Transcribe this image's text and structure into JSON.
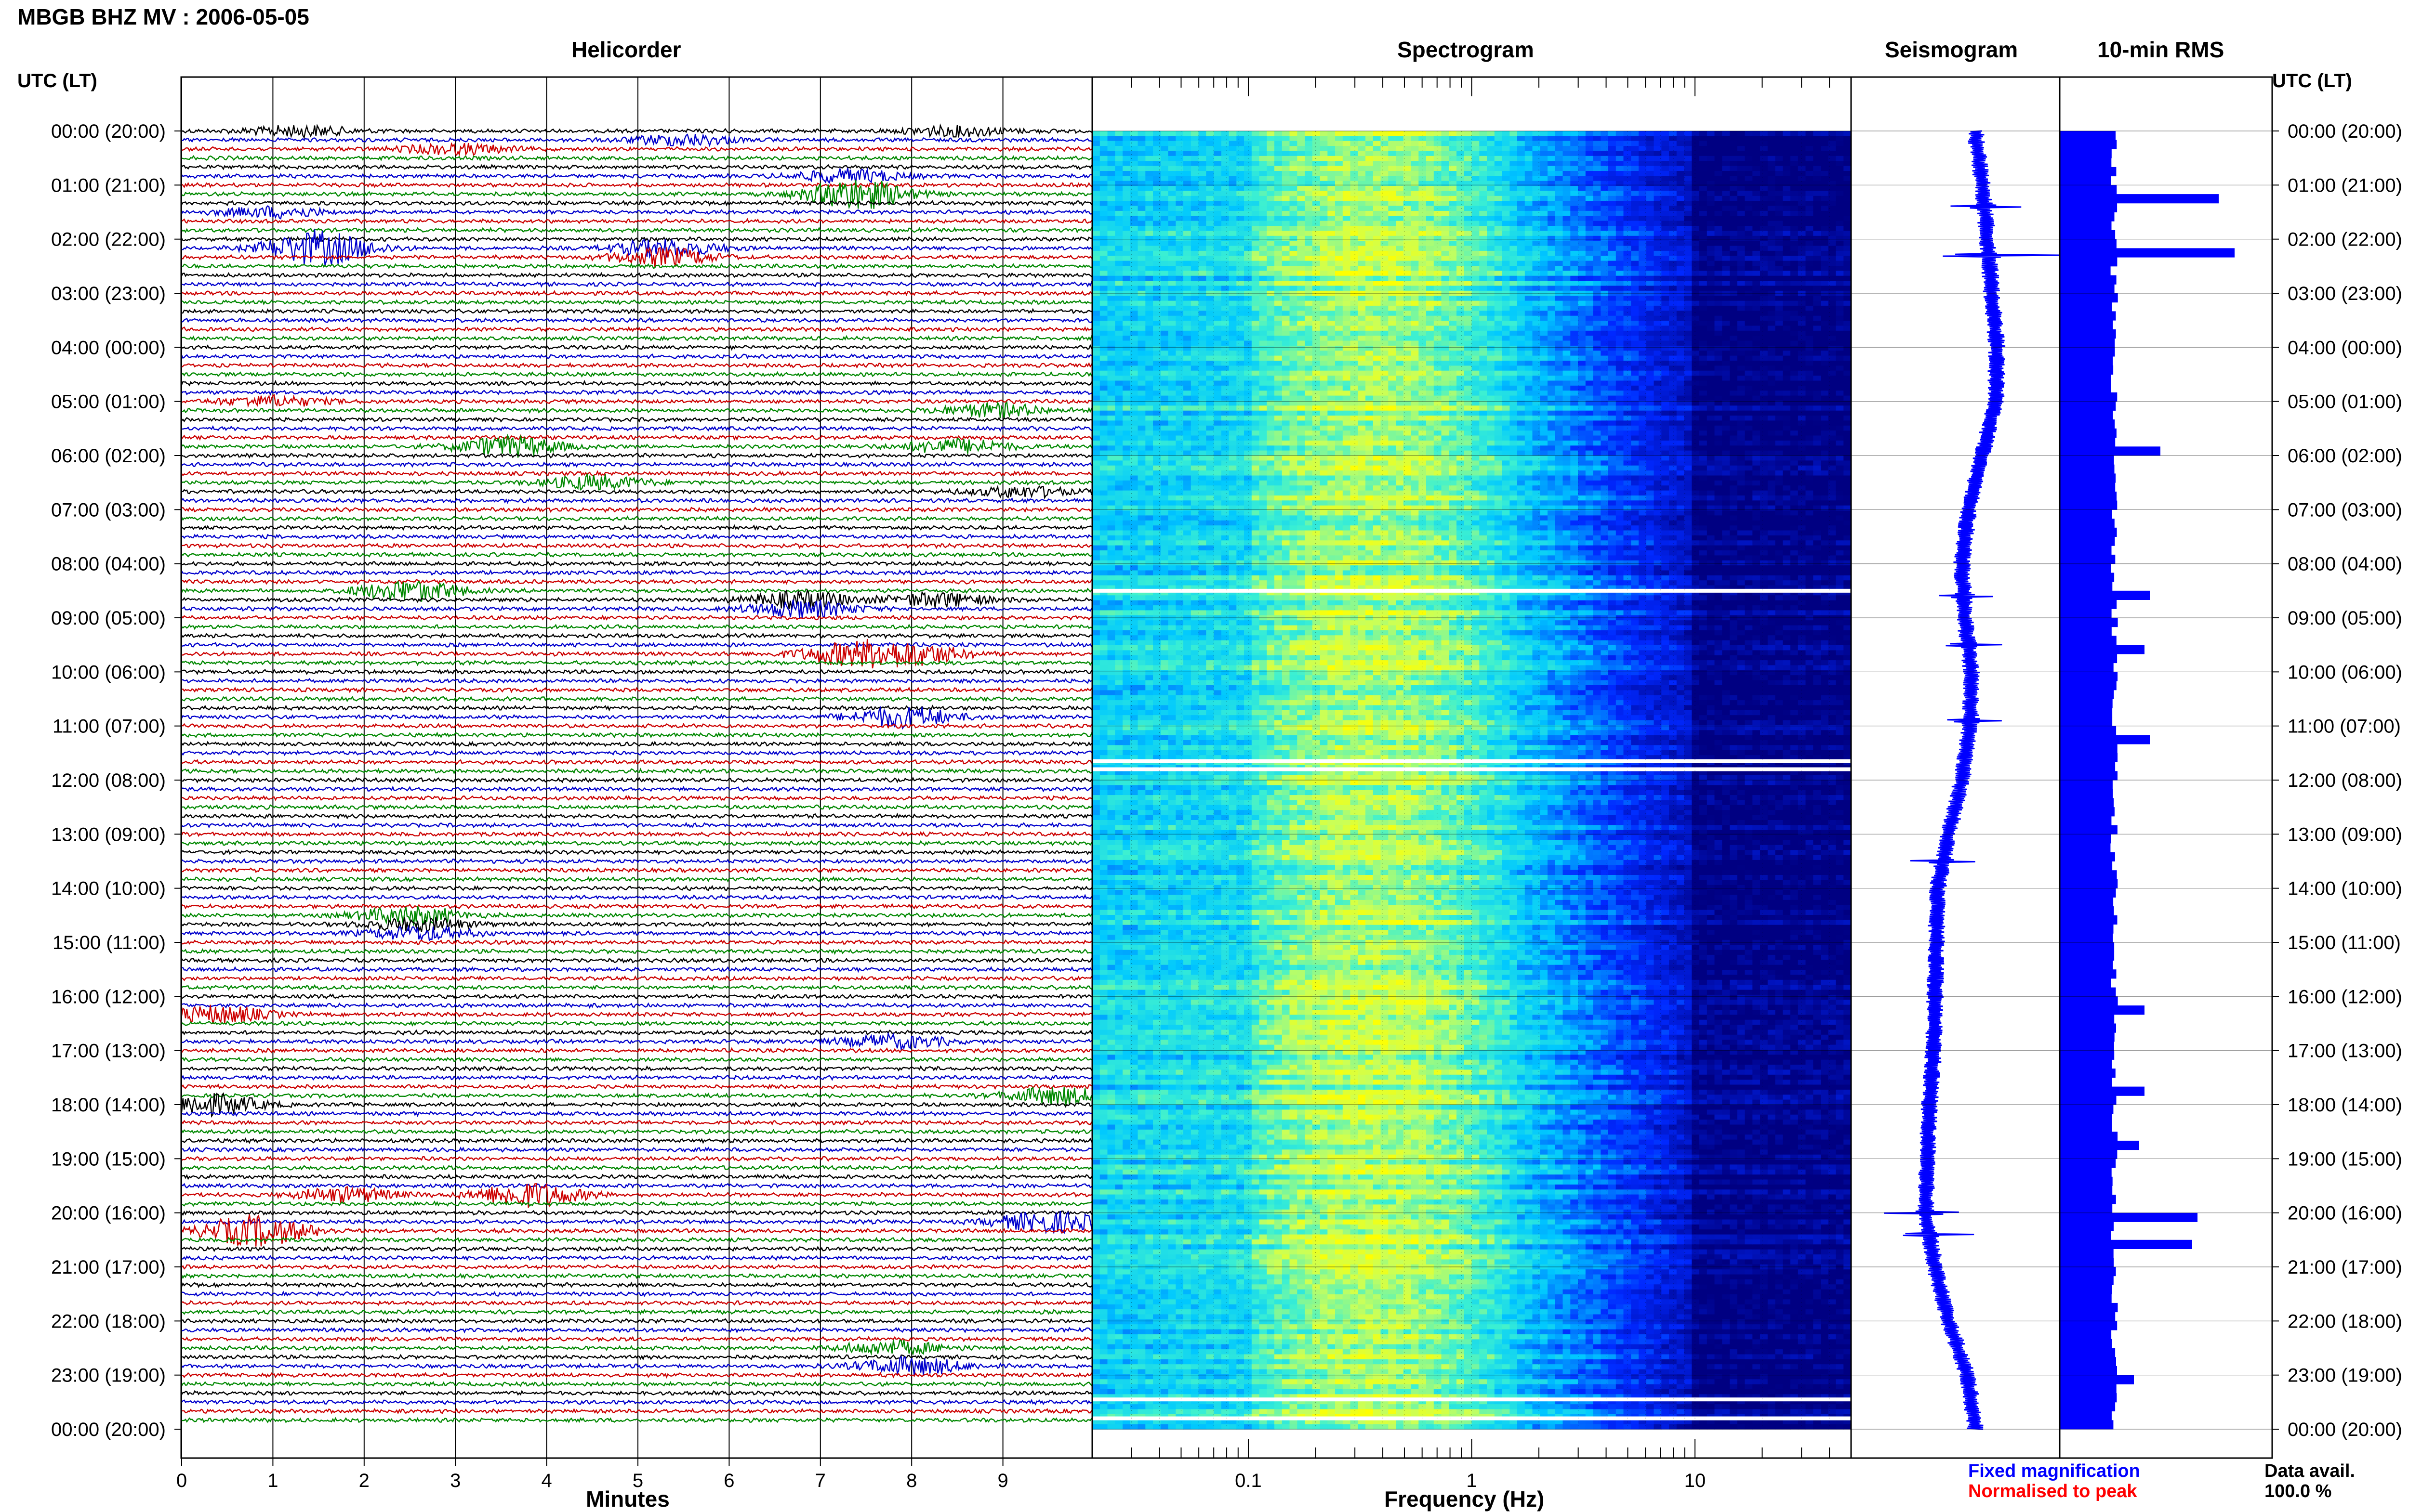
{
  "header": {
    "title": "MBGB BHZ MV : 2006-05-05"
  },
  "panels": {
    "helicorder_title": "Helicorder",
    "spectrogram_title": "Spectrogram",
    "seismogram_title": "Seismogram",
    "rms_title": "10-min RMS"
  },
  "axes": {
    "left_time_label": "UTC (LT)",
    "right_time_label": "UTC (LT)",
    "helicorder_xlabel": "Minutes",
    "spectrogram_xlabel": "Frequency (Hz)"
  },
  "legend": {
    "fixed_label": "Fixed magnification",
    "fixed_color": "#0000ff",
    "normalised_label": "Normalised to peak",
    "normalised_color": "#ff0000"
  },
  "availability": {
    "label": "Data avail.",
    "value": "100.0 %"
  },
  "colors": {
    "trace_colors": [
      "#000000",
      "#0000cc",
      "#cc0000",
      "#008800"
    ],
    "seismogram": "#0000ff",
    "rms_bar": "#0000ff",
    "spectrogram_colormap": [
      "#00007f",
      "#0000ff",
      "#00ffff",
      "#ffff00"
    ]
  },
  "chart_data": [
    {
      "type": "helicorder",
      "title": "Helicorder",
      "xlabel": "Minutes",
      "x_ticks": [
        0,
        1,
        2,
        3,
        4,
        5,
        6,
        7,
        8,
        9
      ],
      "xlim": [
        0,
        10
      ],
      "time_ticks_utc": [
        "00:00",
        "01:00",
        "02:00",
        "03:00",
        "04:00",
        "05:00",
        "06:00",
        "07:00",
        "08:00",
        "09:00",
        "10:00",
        "11:00",
        "12:00",
        "13:00",
        "14:00",
        "15:00",
        "16:00",
        "17:00",
        "18:00",
        "19:00",
        "20:00",
        "21:00",
        "22:00",
        "23:00",
        "00:00"
      ],
      "time_ticks_lt": [
        "(20:00)",
        "(21:00)",
        "(22:00)",
        "(23:00)",
        "(00:00)",
        "(01:00)",
        "(02:00)",
        "(03:00)",
        "(04:00)",
        "(05:00)",
        "(06:00)",
        "(07:00)",
        "(08:00)",
        "(09:00)",
        "(10:00)",
        "(11:00)",
        "(12:00)",
        "(13:00)",
        "(14:00)",
        "(15:00)",
        "(16:00)",
        "(17:00)",
        "(18:00)",
        "(19:00)",
        "(20:00)"
      ],
      "line_minutes": 10,
      "lines": 144,
      "bursts": [
        {
          "hour": 0.05,
          "minute": 1.3,
          "amp": 1.5
        },
        {
          "hour": 0.05,
          "minute": 8.5,
          "amp": 1.5
        },
        {
          "hour": 0.2,
          "minute": 5.5,
          "amp": 1.5
        },
        {
          "hour": 0.35,
          "minute": 3.0,
          "amp": 1.5
        },
        {
          "hour": 0.8,
          "minute": 7.3,
          "amp": 2.0
        },
        {
          "hour": 1.2,
          "minute": 7.4,
          "amp": 4.5
        },
        {
          "hour": 1.5,
          "minute": 1.0,
          "amp": 1.5
        },
        {
          "hour": 2.2,
          "minute": 1.5,
          "amp": 5.0
        },
        {
          "hour": 2.25,
          "minute": 5.3,
          "amp": 2.5
        },
        {
          "hour": 5.0,
          "minute": 1.0,
          "amp": 1.5
        },
        {
          "hour": 5.2,
          "minute": 8.9,
          "amp": 2.0
        },
        {
          "hour": 5.85,
          "minute": 3.6,
          "amp": 3.0
        },
        {
          "hour": 5.9,
          "minute": 8.5,
          "amp": 2.0
        },
        {
          "hour": 6.5,
          "minute": 4.5,
          "amp": 2.0
        },
        {
          "hour": 6.65,
          "minute": 9.2,
          "amp": 1.5
        },
        {
          "hour": 8.5,
          "minute": 2.5,
          "amp": 3.0
        },
        {
          "hour": 8.6,
          "minute": 8.3,
          "amp": 2.0
        },
        {
          "hour": 8.75,
          "minute": 6.8,
          "amp": 2.5
        },
        {
          "hour": 9.6,
          "minute": 8.0,
          "amp": 3.0
        },
        {
          "hour": 9.7,
          "minute": 7.3,
          "amp": 3.0
        },
        {
          "hour": 10.9,
          "minute": 7.9,
          "amp": 3.0
        },
        {
          "hour": 14.5,
          "minute": 2.5,
          "amp": 2.5
        },
        {
          "hour": 14.75,
          "minute": 2.6,
          "amp": 2.0
        },
        {
          "hour": 16.3,
          "minute": 0.4,
          "amp": 2.5
        },
        {
          "hour": 16.85,
          "minute": 7.8,
          "amp": 2.0
        },
        {
          "hour": 17.95,
          "minute": 0.3,
          "amp": 3.0
        },
        {
          "hour": 17.8,
          "minute": 9.6,
          "amp": 2.5
        },
        {
          "hour": 19.7,
          "minute": 3.8,
          "amp": 3.5
        },
        {
          "hour": 19.7,
          "minute": 1.8,
          "amp": 2.0
        },
        {
          "hour": 20.35,
          "minute": 0.8,
          "amp": 4.5
        },
        {
          "hour": 20.15,
          "minute": 9.5,
          "amp": 3.0
        },
        {
          "hour": 22.55,
          "minute": 7.8,
          "amp": 2.0
        },
        {
          "hour": 22.9,
          "minute": 8.0,
          "amp": 2.5
        }
      ]
    },
    {
      "type": "heatmap",
      "title": "Spectrogram",
      "xlabel": "Frequency (Hz)",
      "xscale": "log",
      "xlim": [
        0.02,
        50
      ],
      "x_ticks": [
        0.1,
        1,
        10
      ],
      "x_tick_labels": [
        "0.1",
        "1",
        "10"
      ],
      "band_peak_hz": 0.35,
      "gaps_hour": [
        8.5,
        11.65,
        11.8,
        23.45,
        23.8
      ]
    },
    {
      "type": "line",
      "title": "Seismogram",
      "hours": [
        0,
        1,
        2,
        3,
        4,
        5,
        6,
        7,
        8,
        9,
        10,
        11,
        12,
        13,
        14,
        15,
        16,
        17,
        18,
        19,
        20,
        21,
        22,
        23,
        24
      ],
      "offsets": [
        0,
        0.5,
        0.9,
        1.2,
        1.6,
        1.5,
        0.5,
        -0.5,
        -1.0,
        -0.8,
        -0.3,
        -0.4,
        -1.0,
        -2.0,
        -2.8,
        -2.9,
        -3.0,
        -3.1,
        -3.4,
        -3.6,
        -3.7,
        -3.0,
        -2.0,
        -0.6,
        0
      ],
      "spikes": [
        {
          "hour": 1.4,
          "amp": 1.8
        },
        {
          "hour": 2.3,
          "amp": 3.5
        },
        {
          "hour": 8.6,
          "amp": 1.2
        },
        {
          "hour": 9.5,
          "amp": 1.4
        },
        {
          "hour": 10.9,
          "amp": 1.3
        },
        {
          "hour": 13.5,
          "amp": 1.6
        },
        {
          "hour": 20.0,
          "amp": 2.0
        },
        {
          "hour": 20.4,
          "amp": 2.0
        }
      ]
    },
    {
      "type": "bar",
      "title": "10-min RMS",
      "orientation": "horizontal",
      "bins": 144,
      "baseline": 1.0,
      "peaks": [
        {
          "bin": 7,
          "value": 3.0
        },
        {
          "bin": 13,
          "value": 3.3
        },
        {
          "bin": 35,
          "value": 1.9
        },
        {
          "bin": 51,
          "value": 1.7
        },
        {
          "bin": 57,
          "value": 1.6
        },
        {
          "bin": 67,
          "value": 1.7
        },
        {
          "bin": 97,
          "value": 1.6
        },
        {
          "bin": 106,
          "value": 1.6
        },
        {
          "bin": 120,
          "value": 2.6
        },
        {
          "bin": 123,
          "value": 2.5
        },
        {
          "bin": 112,
          "value": 1.5
        },
        {
          "bin": 138,
          "value": 1.4
        }
      ]
    }
  ]
}
